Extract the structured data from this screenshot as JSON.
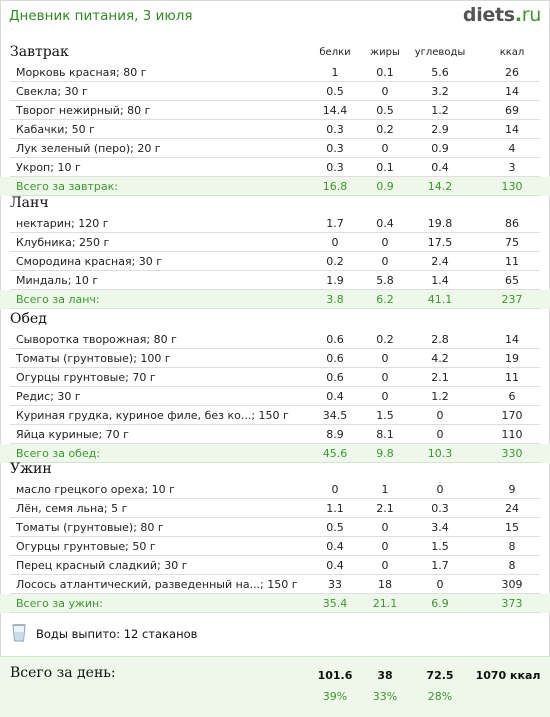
{
  "header": {
    "title": "Дневник питания, 3 июля",
    "brand_main": "diets",
    "brand_dot": ".",
    "brand_tld": "ru"
  },
  "columns": {
    "protein": "белки",
    "fat": "жиры",
    "carbs": "углеводы",
    "kcal": "ккал"
  },
  "meals": [
    {
      "name": "Завтрак",
      "items": [
        {
          "name": "Морковь красная; 80 г",
          "protein": "1",
          "fat": "0.1",
          "carbs": "5.6",
          "kcal": "26"
        },
        {
          "name": "Свекла; 30 г",
          "protein": "0.5",
          "fat": "0",
          "carbs": "3.2",
          "kcal": "14"
        },
        {
          "name": "Творог нежирный; 80 г",
          "protein": "14.4",
          "fat": "0.5",
          "carbs": "1.2",
          "kcal": "69"
        },
        {
          "name": "Кабачки; 50 г",
          "protein": "0.3",
          "fat": "0.2",
          "carbs": "2.9",
          "kcal": "14"
        },
        {
          "name": "Лук зеленый (перо); 20 г",
          "protein": "0.3",
          "fat": "0",
          "carbs": "0.9",
          "kcal": "4"
        },
        {
          "name": "Укроп; 10 г",
          "protein": "0.3",
          "fat": "0.1",
          "carbs": "0.4",
          "kcal": "3"
        }
      ],
      "total": {
        "label": "Всего за завтрак:",
        "protein": "16.8",
        "fat": "0.9",
        "carbs": "14.2",
        "kcal": "130"
      }
    },
    {
      "name": "Ланч",
      "items": [
        {
          "name": "нектарин; 120 г",
          "protein": "1.7",
          "fat": "0.4",
          "carbs": "19.8",
          "kcal": "86"
        },
        {
          "name": "Клубника; 250 г",
          "protein": "0",
          "fat": "0",
          "carbs": "17.5",
          "kcal": "75"
        },
        {
          "name": "Смородина красная; 30 г",
          "protein": "0.2",
          "fat": "0",
          "carbs": "2.4",
          "kcal": "11"
        },
        {
          "name": "Миндаль; 10 г",
          "protein": "1.9",
          "fat": "5.8",
          "carbs": "1.4",
          "kcal": "65"
        }
      ],
      "total": {
        "label": "Всего за ланч:",
        "protein": "3.8",
        "fat": "6.2",
        "carbs": "41.1",
        "kcal": "237"
      }
    },
    {
      "name": "Обед",
      "items": [
        {
          "name": "Сыворотка творожная; 80 г",
          "protein": "0.6",
          "fat": "0.2",
          "carbs": "2.8",
          "kcal": "14"
        },
        {
          "name": "Томаты (грунтовые); 100 г",
          "protein": "0.6",
          "fat": "0",
          "carbs": "4.2",
          "kcal": "19"
        },
        {
          "name": "Огурцы грунтовые; 70 г",
          "protein": "0.6",
          "fat": "0",
          "carbs": "2.1",
          "kcal": "11"
        },
        {
          "name": "Редис; 30 г",
          "protein": "0.4",
          "fat": "0",
          "carbs": "1.2",
          "kcal": "6"
        },
        {
          "name": "Куриная грудка, куриное филе, без ко...; 150 г",
          "protein": "34.5",
          "fat": "1.5",
          "carbs": "0",
          "kcal": "170"
        },
        {
          "name": "Яйца куриные; 70 г",
          "protein": "8.9",
          "fat": "8.1",
          "carbs": "0",
          "kcal": "110"
        }
      ],
      "total": {
        "label": "Всего за обед:",
        "protein": "45.6",
        "fat": "9.8",
        "carbs": "10.3",
        "kcal": "330"
      }
    },
    {
      "name": "Ужин",
      "items": [
        {
          "name": "масло грецкого ореха; 10 г",
          "protein": "0",
          "fat": "1",
          "carbs": "0",
          "kcal": "9"
        },
        {
          "name": "Лён, семя льна; 5 г",
          "protein": "1.1",
          "fat": "2.1",
          "carbs": "0.3",
          "kcal": "24"
        },
        {
          "name": "Томаты (грунтовые); 80 г",
          "protein": "0.5",
          "fat": "0",
          "carbs": "3.4",
          "kcal": "15"
        },
        {
          "name": "Огурцы грунтовые; 50 г",
          "protein": "0.4",
          "fat": "0",
          "carbs": "1.5",
          "kcal": "8"
        },
        {
          "name": "Перец красный сладкий; 30 г",
          "protein": "0.4",
          "fat": "0",
          "carbs": "1.7",
          "kcal": "8"
        },
        {
          "name": "Лосось атлантический, разведенный на...; 150 г",
          "protein": "33",
          "fat": "18",
          "carbs": "0",
          "kcal": "309"
        }
      ],
      "total": {
        "label": "Всего за ужин:",
        "protein": "35.4",
        "fat": "21.1",
        "carbs": "6.9",
        "kcal": "373"
      }
    }
  ],
  "water": {
    "icon": "glass-icon",
    "text": "Воды выпито: 12 стаканов"
  },
  "day_total": {
    "label": "Всего за день:",
    "protein": "101.6",
    "fat": "38",
    "carbs": "72.5",
    "kcal": "1070 ккал",
    "protein_pct": "39%",
    "fat_pct": "33%",
    "carbs_pct": "28%"
  },
  "colors": {
    "accent_green": "#3a9a2a",
    "total_row_bg": "#eef8ea",
    "title_green": "#2e8b23"
  }
}
